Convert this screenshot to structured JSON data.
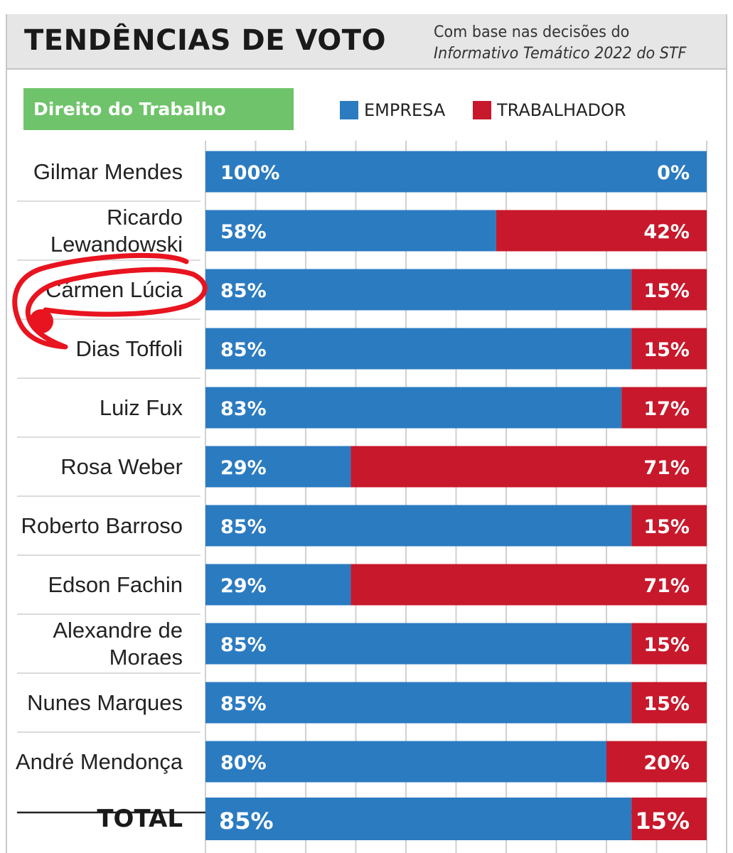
{
  "header": {
    "title": "TENDÊNCIAS DE VOTO",
    "subtitle_line1": "Com base nas decisões do",
    "subtitle_line2": "Informativo Temático 2022 do STF"
  },
  "category_label": "Direito do Trabalho",
  "colors": {
    "empresa": "#2b7bc1",
    "trabalhador": "#c8182b",
    "category_bg": "#6fc36a",
    "annotation": "#e8141f"
  },
  "annotation": {
    "type": "hand-drawn red circle with dot",
    "target": "Cármen Lúcia"
  },
  "chart_data": {
    "type": "bar",
    "orientation": "horizontal",
    "stacked": true,
    "title": "TENDÊNCIAS DE VOTO",
    "subtitle": "Com base nas decisões do Informativo Temático 2022 do STF",
    "legend_position": "top-right",
    "grid": true,
    "xlim": [
      0,
      100
    ],
    "categories": [
      [
        "Gilmar Mendes"
      ],
      [
        "Ricardo",
        "Lewandowski"
      ],
      [
        "Cármen Lúcia"
      ],
      [
        "Dias Toffoli"
      ],
      [
        "Luiz Fux"
      ],
      [
        "Rosa Weber"
      ],
      [
        "Roberto Barroso"
      ],
      [
        "Edson Fachin"
      ],
      [
        "Alexandre de",
        "Moraes"
      ],
      [
        "Nunes Marques"
      ],
      [
        "André Mendonça"
      ]
    ],
    "series": [
      {
        "name": "EMPRESA",
        "color": "#2b7bc1",
        "values": [
          100,
          58,
          85,
          85,
          83,
          29,
          85,
          29,
          85,
          85,
          80
        ]
      },
      {
        "name": "TRABALHADOR",
        "color": "#c8182b",
        "values": [
          0,
          42,
          15,
          15,
          17,
          71,
          15,
          71,
          15,
          15,
          20
        ]
      }
    ],
    "data_labels": [
      [
        "100%",
        "0%"
      ],
      [
        "58%",
        "42%"
      ],
      [
        "85%",
        "15%"
      ],
      [
        "85%",
        "15%"
      ],
      [
        "83%",
        "17%"
      ],
      [
        "29%",
        "71%"
      ],
      [
        "85%",
        "15%"
      ],
      [
        "29%",
        "71%"
      ],
      [
        "85%",
        "15%"
      ],
      [
        "85%",
        "15%"
      ],
      [
        "80%",
        "20%"
      ]
    ],
    "total": {
      "label": "TOTAL",
      "values": [
        85,
        15
      ],
      "data_labels": [
        "85%",
        "15%"
      ]
    }
  }
}
